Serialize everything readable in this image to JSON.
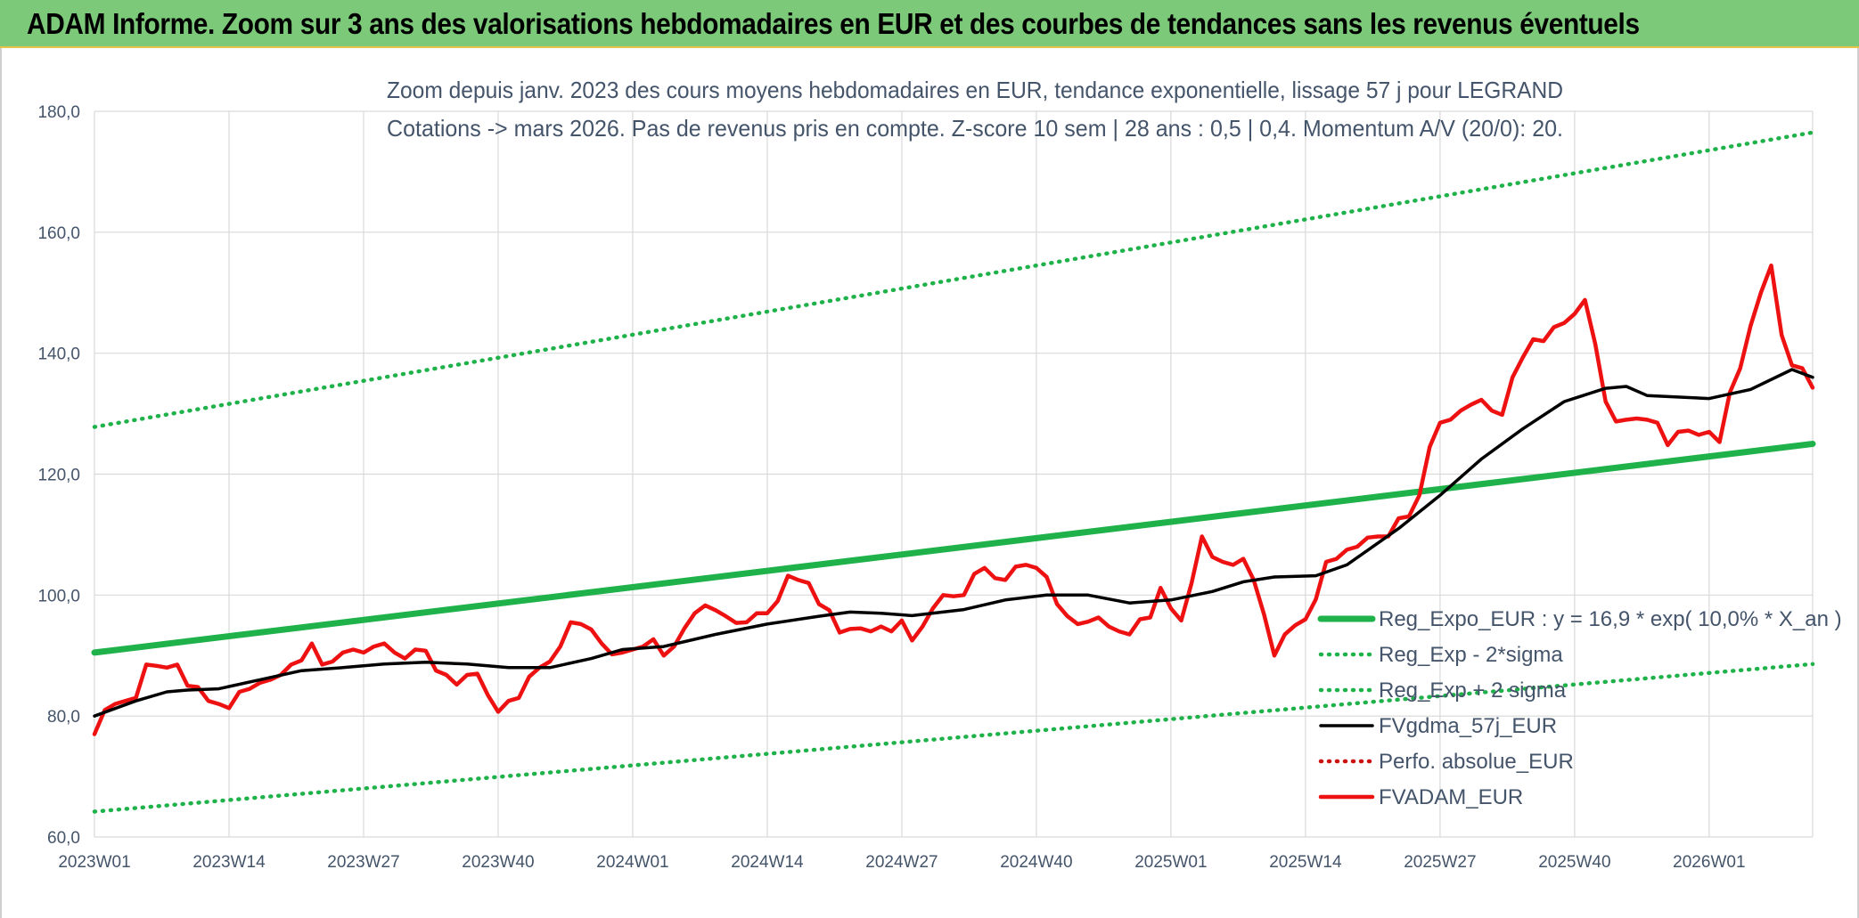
{
  "banner": {
    "title": "ADAM Informe. Zoom sur 3 ans des valorisations hebdomadaires en EUR et des courbes de tendances sans les revenus éventuels"
  },
  "colors": {
    "banner_bg": "#7cc97a",
    "trend": "#1fb24a",
    "smooth": "#000000",
    "value": "#ee1111",
    "perfo": "#cc1111",
    "text": "#44546a"
  },
  "chart_data": {
    "type": "line",
    "title": "Zoom depuis janv. 2023 des cours moyens hebdomadaires en EUR, tendance exponentielle, lissage 57 j pour LEGRAND",
    "subtitle": "Cotations -> mars 2026. Pas de revenus pris en compte. Z-score 10 sem | 28 ans : 0,5 | 0,4. Momentum A/V (20/0): 20.",
    "xlabel": "",
    "ylabel": "",
    "ylim": [
      60,
      180
    ],
    "y_ticks": [
      "60,0",
      "80,0",
      "100,0",
      "120,0",
      "140,0",
      "160,0",
      "180,0"
    ],
    "y_tick_values": [
      60,
      80,
      100,
      120,
      140,
      160,
      180
    ],
    "x_range_weeks": [
      0,
      166
    ],
    "x_ticks": [
      "2023W01",
      "2023W14",
      "2023W27",
      "2023W40",
      "2024W01",
      "2024W14",
      "2024W27",
      "2024W40",
      "2025W01",
      "2025W14",
      "2025W27",
      "2025W40",
      "2026W01"
    ],
    "x_tick_weeks": [
      0,
      13,
      26,
      39,
      52,
      65,
      78,
      91,
      104,
      117,
      130,
      143,
      156
    ],
    "grid": "vertical and horizontal",
    "legend_position": "bottom-right",
    "series": [
      {
        "name": "Reg_Expo_EUR : y = 16,9 * exp( 10,0% *  X_an )",
        "style": "thick-solid",
        "color": "#1fb24a",
        "points": [
          [
            0,
            90.5
          ],
          [
            166,
            125.0
          ]
        ]
      },
      {
        "name": "Reg_Exp - 2*sigma",
        "style": "dotted",
        "color": "#1fb24a",
        "points": [
          [
            0,
            64.2
          ],
          [
            166,
            88.6
          ]
        ]
      },
      {
        "name": "Reg_Exp + 2 sigma",
        "style": "dotted",
        "color": "#1fb24a",
        "points": [
          [
            0,
            127.8
          ],
          [
            166,
            176.5
          ]
        ]
      },
      {
        "name": "FVgdma_57j_EUR",
        "style": "solid",
        "color": "#000000",
        "points": [
          [
            0,
            80.0
          ],
          [
            4,
            82.5
          ],
          [
            7,
            84.0
          ],
          [
            9,
            84.3
          ],
          [
            12,
            84.5
          ],
          [
            16,
            86.0
          ],
          [
            20,
            87.5
          ],
          [
            24,
            88.0
          ],
          [
            28,
            88.6
          ],
          [
            32,
            88.9
          ],
          [
            36,
            88.6
          ],
          [
            40,
            88.0
          ],
          [
            44,
            88.0
          ],
          [
            48,
            89.5
          ],
          [
            51,
            91.0
          ],
          [
            55,
            91.5
          ],
          [
            60,
            93.5
          ],
          [
            65,
            95.2
          ],
          [
            70,
            96.5
          ],
          [
            73,
            97.2
          ],
          [
            76,
            97.0
          ],
          [
            79,
            96.6
          ],
          [
            84,
            97.6
          ],
          [
            88,
            99.2
          ],
          [
            92,
            100.0
          ],
          [
            96,
            100.0
          ],
          [
            100,
            98.7
          ],
          [
            104,
            99.2
          ],
          [
            108,
            100.6
          ],
          [
            111,
            102.2
          ],
          [
            114,
            103.0
          ],
          [
            118,
            103.2
          ],
          [
            121,
            105.0
          ],
          [
            126,
            111.0
          ],
          [
            130,
            116.5
          ],
          [
            134,
            122.5
          ],
          [
            138,
            127.5
          ],
          [
            142,
            132.0
          ],
          [
            146,
            134.2
          ],
          [
            148,
            134.5
          ],
          [
            150,
            133.0
          ],
          [
            156,
            132.5
          ],
          [
            160,
            134.0
          ],
          [
            164,
            137.3
          ],
          [
            166,
            136.0
          ]
        ]
      },
      {
        "name": "Perfo. absolue_EUR",
        "style": "dotted",
        "color": "#cc1111",
        "points": []
      },
      {
        "name": "FVADAM_EUR",
        "style": "solid",
        "color": "#ee1111",
        "points": [
          [
            0,
            77.0
          ],
          [
            1,
            81.0
          ],
          [
            2,
            82.0
          ],
          [
            3,
            82.5
          ],
          [
            4,
            83.0
          ],
          [
            5,
            88.5
          ],
          [
            6,
            88.3
          ],
          [
            7,
            88.0
          ],
          [
            8,
            88.5
          ],
          [
            9,
            85.0
          ],
          [
            10,
            84.8
          ],
          [
            11,
            82.5
          ],
          [
            12,
            82.0
          ],
          [
            13,
            81.3
          ],
          [
            14,
            84.0
          ],
          [
            15,
            84.5
          ],
          [
            16,
            85.5
          ],
          [
            17,
            86.0
          ],
          [
            18,
            86.8
          ],
          [
            19,
            88.5
          ],
          [
            20,
            89.2
          ],
          [
            21,
            92.0
          ],
          [
            22,
            88.5
          ],
          [
            23,
            89.0
          ],
          [
            24,
            90.5
          ],
          [
            25,
            91.0
          ],
          [
            26,
            90.5
          ],
          [
            27,
            91.5
          ],
          [
            28,
            92.0
          ],
          [
            29,
            90.5
          ],
          [
            30,
            89.5
          ],
          [
            31,
            91.0
          ],
          [
            32,
            90.8
          ],
          [
            33,
            87.5
          ],
          [
            34,
            86.8
          ],
          [
            35,
            85.2
          ],
          [
            36,
            86.8
          ],
          [
            37,
            87.0
          ],
          [
            38,
            83.5
          ],
          [
            39,
            80.7
          ],
          [
            40,
            82.5
          ],
          [
            41,
            83.0
          ],
          [
            42,
            86.5
          ],
          [
            43,
            88.0
          ],
          [
            44,
            89.0
          ],
          [
            45,
            91.5
          ],
          [
            46,
            95.5
          ],
          [
            47,
            95.2
          ],
          [
            48,
            94.3
          ],
          [
            49,
            92.0
          ],
          [
            50,
            90.2
          ],
          [
            51,
            90.5
          ],
          [
            52,
            91.0
          ],
          [
            53,
            91.5
          ],
          [
            54,
            92.7
          ],
          [
            55,
            90.0
          ],
          [
            56,
            91.5
          ],
          [
            57,
            94.5
          ],
          [
            58,
            97.0
          ],
          [
            59,
            98.3
          ],
          [
            60,
            97.5
          ],
          [
            61,
            96.5
          ],
          [
            62,
            95.4
          ],
          [
            63,
            95.5
          ],
          [
            64,
            97.0
          ],
          [
            65,
            97.0
          ],
          [
            66,
            99.0
          ],
          [
            67,
            103.2
          ],
          [
            68,
            102.5
          ],
          [
            69,
            102.0
          ],
          [
            70,
            98.5
          ],
          [
            71,
            97.5
          ],
          [
            72,
            93.8
          ],
          [
            73,
            94.4
          ],
          [
            74,
            94.5
          ],
          [
            75,
            94.0
          ],
          [
            76,
            94.8
          ],
          [
            77,
            94.0
          ],
          [
            78,
            95.8
          ],
          [
            79,
            92.5
          ],
          [
            80,
            94.8
          ],
          [
            81,
            97.8
          ],
          [
            82,
            100.0
          ],
          [
            83,
            99.8
          ],
          [
            84,
            100.0
          ],
          [
            85,
            103.5
          ],
          [
            86,
            104.5
          ],
          [
            87,
            102.8
          ],
          [
            88,
            102.5
          ],
          [
            89,
            104.7
          ],
          [
            90,
            105.0
          ],
          [
            91,
            104.5
          ],
          [
            92,
            103.0
          ],
          [
            93,
            98.5
          ],
          [
            94,
            96.5
          ],
          [
            95,
            95.2
          ],
          [
            96,
            95.6
          ],
          [
            97,
            96.3
          ],
          [
            98,
            94.8
          ],
          [
            99,
            94.0
          ],
          [
            100,
            93.5
          ],
          [
            101,
            96.0
          ],
          [
            102,
            96.3
          ],
          [
            103,
            101.2
          ],
          [
            104,
            97.8
          ],
          [
            105,
            95.8
          ],
          [
            106,
            102.0
          ],
          [
            107,
            109.7
          ],
          [
            108,
            106.3
          ],
          [
            109,
            105.5
          ],
          [
            110,
            105.0
          ],
          [
            111,
            106.0
          ],
          [
            112,
            102.5
          ],
          [
            113,
            96.8
          ],
          [
            114,
            90.0
          ],
          [
            115,
            93.5
          ],
          [
            116,
            95.0
          ],
          [
            117,
            96.0
          ],
          [
            118,
            99.3
          ],
          [
            119,
            105.5
          ],
          [
            120,
            106.0
          ],
          [
            121,
            107.5
          ],
          [
            122,
            108.0
          ],
          [
            123,
            109.5
          ],
          [
            124,
            109.7
          ],
          [
            125,
            109.7
          ],
          [
            126,
            112.7
          ],
          [
            127,
            113.0
          ],
          [
            128,
            116.5
          ],
          [
            129,
            124.5
          ],
          [
            130,
            128.5
          ],
          [
            131,
            129.0
          ],
          [
            132,
            130.5
          ],
          [
            133,
            131.5
          ],
          [
            134,
            132.3
          ],
          [
            135,
            130.5
          ],
          [
            136,
            129.8
          ],
          [
            137,
            136.0
          ],
          [
            138,
            139.3
          ],
          [
            139,
            142.3
          ],
          [
            140,
            142.0
          ],
          [
            141,
            144.3
          ],
          [
            142,
            145.0
          ],
          [
            143,
            146.5
          ],
          [
            144,
            148.8
          ],
          [
            145,
            141.5
          ],
          [
            146,
            132.0
          ],
          [
            147,
            128.7
          ],
          [
            148,
            129.0
          ],
          [
            149,
            129.2
          ],
          [
            150,
            129.0
          ],
          [
            151,
            128.5
          ],
          [
            152,
            124.8
          ],
          [
            153,
            127.0
          ],
          [
            154,
            127.2
          ],
          [
            155,
            126.5
          ],
          [
            156,
            127.0
          ],
          [
            157,
            125.3
          ],
          [
            158,
            133.5
          ],
          [
            159,
            137.5
          ],
          [
            160,
            144.5
          ],
          [
            161,
            150.0
          ],
          [
            162,
            154.5
          ],
          [
            163,
            143.0
          ],
          [
            164,
            138.0
          ],
          [
            165,
            137.5
          ],
          [
            166,
            134.3
          ]
        ]
      }
    ]
  }
}
